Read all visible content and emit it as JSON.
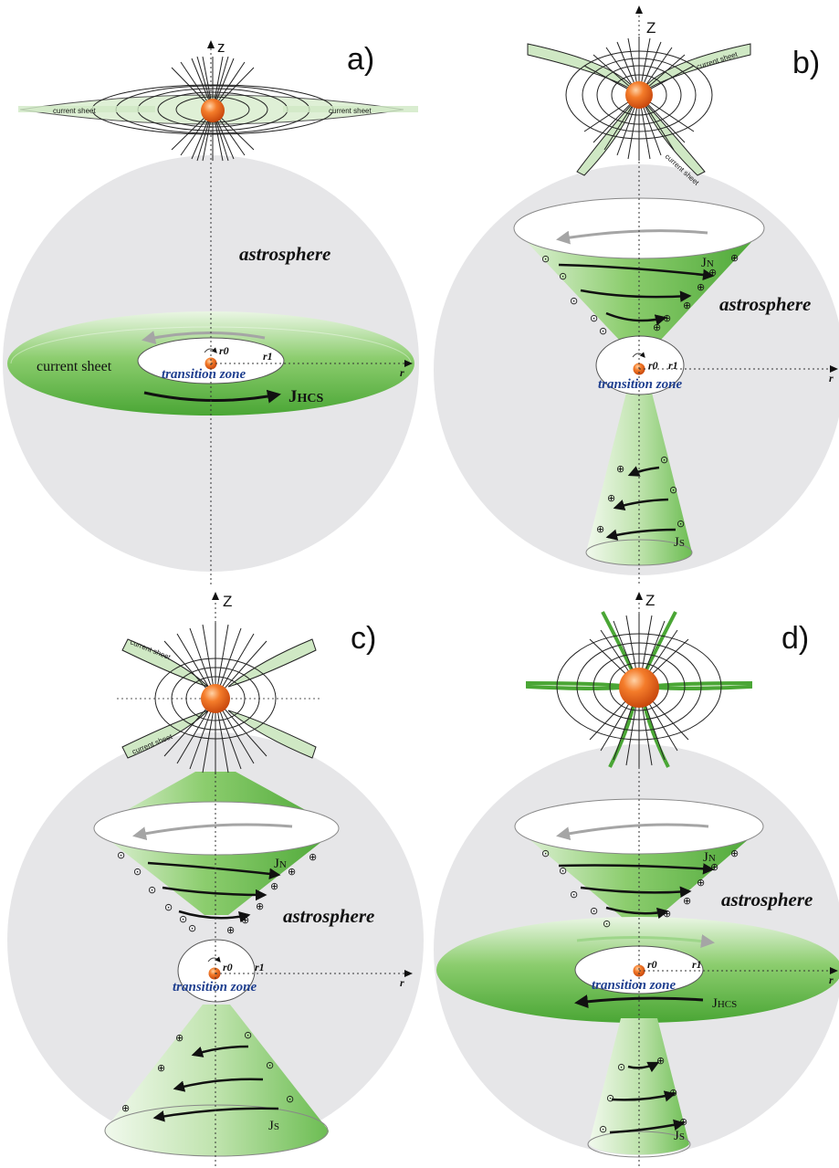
{
  "panels": {
    "a": {
      "letter": "a)",
      "axis_z": "z",
      "axis_r": "r",
      "astrosphere": "astrosphere",
      "current_sheet": "current sheet",
      "current_sheet_left": "current sheet",
      "current_sheet_right": "current sheet",
      "transition_zone": "transition zone",
      "r0": "r0",
      "r1": "r1",
      "j_main": "J",
      "j_sub": "HCS"
    },
    "b": {
      "letter": "b)",
      "axis_z": "Z",
      "axis_r": "r",
      "astrosphere": "astrosphere",
      "current_sheet_1": "current sheet",
      "current_sheet_2": "current sheet",
      "transition_zone": "transition zone",
      "r0": "r0",
      "r1": "r1",
      "jn_main": "J",
      "jn_sub": "N",
      "js_main": "J",
      "js_sub": "S"
    },
    "c": {
      "letter": "c)",
      "axis_z": "Z",
      "axis_r": "r",
      "astrosphere": "astrosphere",
      "current_sheet_1": "current sheet",
      "current_sheet_2": "current sheet",
      "transition_zone": "transition zone",
      "r0": "r0",
      "r1": "r1",
      "jn_main": "J",
      "jn_sub": "N",
      "js_main": "J",
      "js_sub": "S"
    },
    "d": {
      "letter": "d)",
      "axis_z": "Z",
      "axis_r": "r",
      "astrosphere": "astrosphere",
      "transition_zone": "transition zone",
      "r0": "r0",
      "r1": "r1",
      "jn_main": "J",
      "jn_sub": "N",
      "js_main": "J",
      "js_sub": "S",
      "jhcs_main": "J",
      "jhcs_sub": "HCS"
    }
  },
  "symbols": {
    "out_of_page": "⊙",
    "into_page": "⊕"
  },
  "colors": {
    "sphere": "#e6e6e8",
    "green_dark": "#4fae3a",
    "green_light": "#e4f3dc",
    "star": "#f26a1b",
    "transition_zone_text": "#1f3f8f",
    "current_sheet_fill": "#cfe8c4"
  }
}
